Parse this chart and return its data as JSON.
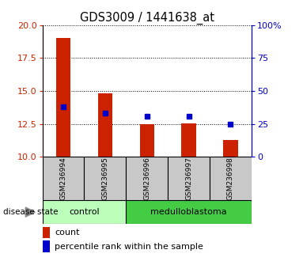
{
  "title": "GDS3009 / 1441638_at",
  "samples": [
    "GSM236994",
    "GSM236995",
    "GSM236996",
    "GSM236997",
    "GSM236998"
  ],
  "bar_values": [
    19.0,
    14.8,
    12.5,
    12.55,
    11.3
  ],
  "percentile_values": [
    13.8,
    13.3,
    13.05,
    13.05,
    12.5
  ],
  "bar_bottom": 10.0,
  "ylim_left": [
    10,
    20
  ],
  "ylim_right": [
    0,
    100
  ],
  "yticks_left": [
    10,
    12.5,
    15,
    17.5,
    20
  ],
  "yticks_right": [
    0,
    25,
    50,
    75,
    100
  ],
  "ytick_labels_right": [
    "0",
    "25",
    "50",
    "75",
    "100%"
  ],
  "bar_color": "#cc2200",
  "percentile_color": "#0000cc",
  "disease_state_label": "disease state",
  "group_control_label": "control",
  "group_med_label": "medulloblastoma",
  "group_control_color": "#bbffbb",
  "group_med_color": "#44cc44",
  "grid_color": "black",
  "plot_bg_color": "white",
  "sample_box_color": "#c8c8c8",
  "legend_count_label": "count",
  "legend_percentile_label": "percentile rank within the sample",
  "bar_width": 0.35
}
